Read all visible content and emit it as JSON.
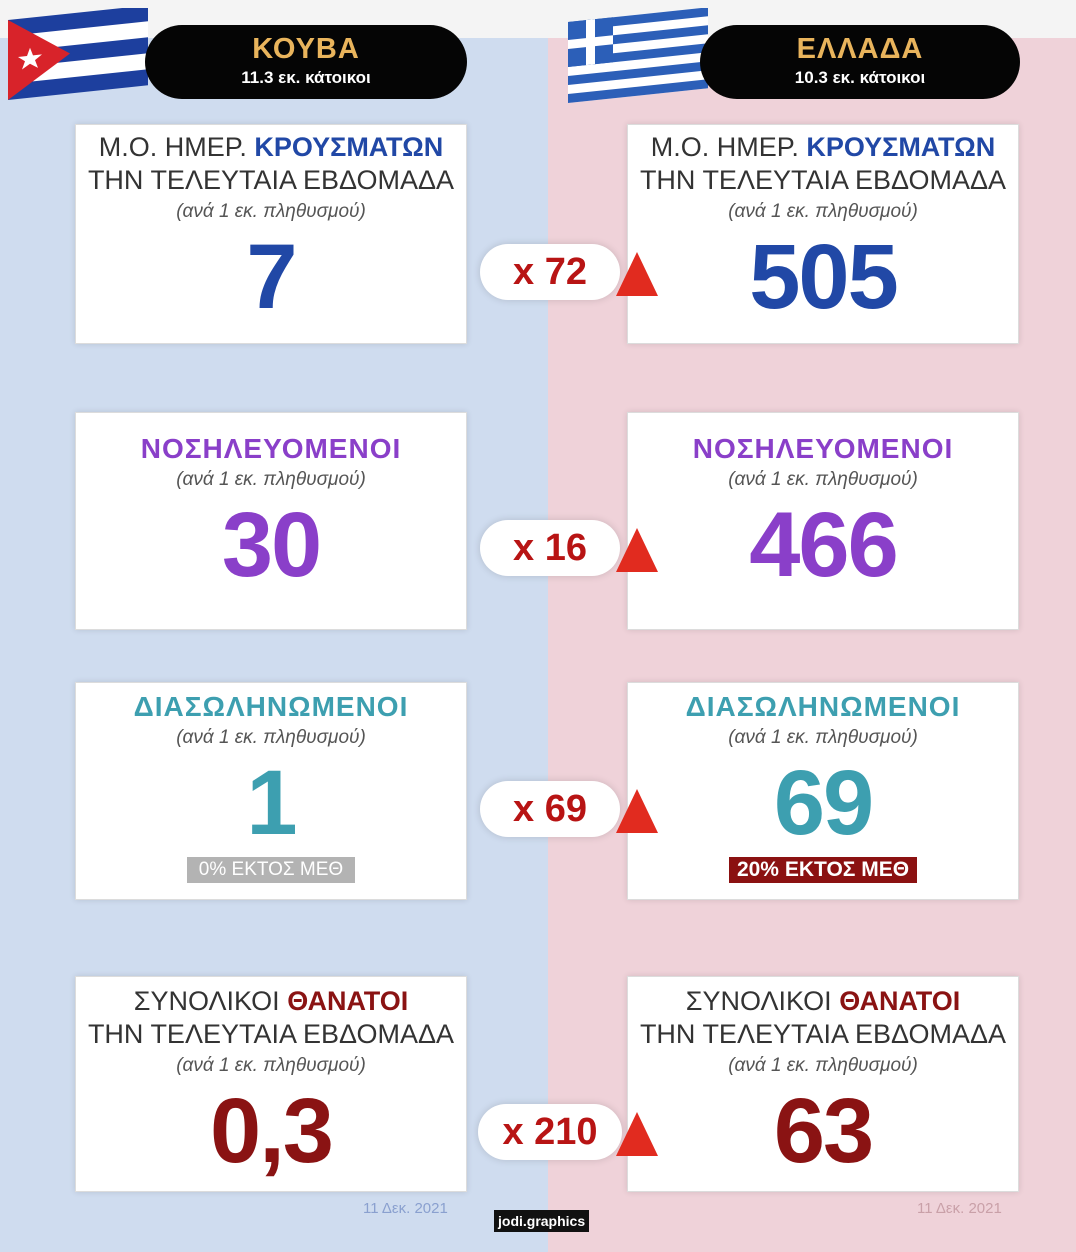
{
  "left": {
    "country": "ΚΟΥΒΑ",
    "population": "11.3 εκ. κάτοικοι",
    "flag_icon": "cuba-flag-icon",
    "cases": {
      "prefix": "Μ.Ο. ΗΜΕΡ. ",
      "highlight": "ΚΡΟΥΣΜΑΤΩΝ",
      "line2": "ΤΗΝ ΤΕΛΕΥΤΑΙΑ ΕΒΔΟΜΑΔΑ",
      "sub": "(ανά 1 εκ. πληθυσμού)",
      "value": "7"
    },
    "hospital": {
      "title": "ΝΟΣΗΛΕΥΟΜΕΝΟΙ",
      "sub": "(ανά 1 εκ. πληθυσμού)",
      "value": "30"
    },
    "intubated": {
      "title": "ΔΙΑΣΩΛΗΝΩΜΕΝΟΙ",
      "sub": "(ανά 1 εκ. πληθυσμού)",
      "value": "1",
      "badge": "0% ΕΚΤΟΣ ΜΕΘ"
    },
    "deaths": {
      "prefix": "ΣΥΝΟΛΙΚΟΙ ",
      "highlight": "ΘΑΝΑΤΟΙ",
      "line2": "ΤΗΝ ΤΕΛΕΥΤΑΙΑ ΕΒΔΟΜΑΔΑ",
      "sub": "(ανά 1 εκ. πληθυσμού)",
      "value": "0,3"
    },
    "date": "11 Δεκ. 2021"
  },
  "right": {
    "country": "ΕΛΛΑΔΑ",
    "population": "10.3 εκ. κάτοικοι",
    "flag_icon": "greece-flag-icon",
    "cases": {
      "prefix": "Μ.Ο. ΗΜΕΡ. ",
      "highlight": "ΚΡΟΥΣΜΑΤΩΝ",
      "line2": "ΤΗΝ ΤΕΛΕΥΤΑΙΑ ΕΒΔΟΜΑΔΑ",
      "sub": "(ανά 1 εκ. πληθυσμού)",
      "value": "505"
    },
    "hospital": {
      "title": "ΝΟΣΗΛΕΥΟΜΕΝΟΙ",
      "sub": "(ανά 1 εκ. πληθυσμού)",
      "value": "466"
    },
    "intubated": {
      "title": "ΔΙΑΣΩΛΗΝΩΜΕΝΟΙ",
      "sub": "(ανά 1 εκ. πληθυσμού)",
      "value": "69",
      "badge": "20% ΕΚΤΟΣ ΜΕΘ"
    },
    "deaths": {
      "prefix": "ΣΥΝΟΛΙΚΟΙ ",
      "highlight": "ΘΑΝΑΤΟΙ",
      "line2": "ΤΗΝ ΤΕΛΕΥΤΑΙΑ ΕΒΔΟΜΑΔΑ",
      "sub": "(ανά 1 εκ. πληθυσμού)",
      "value": "63"
    },
    "date": "11 Δεκ. 2021"
  },
  "multipliers": {
    "cases": "x 72",
    "hospital": "x 16",
    "intubated": "x 69",
    "deaths": "x 210"
  },
  "arrow_icon": "up-arrow-icon",
  "credit": "jodi.graphics",
  "colors": {
    "cases": "#2148a6",
    "hospital": "#8a3fc9",
    "intubated": "#3d9fb0",
    "deaths": "#8a1313",
    "arrow": "#e12b1f",
    "multiplier": "#b81414"
  }
}
